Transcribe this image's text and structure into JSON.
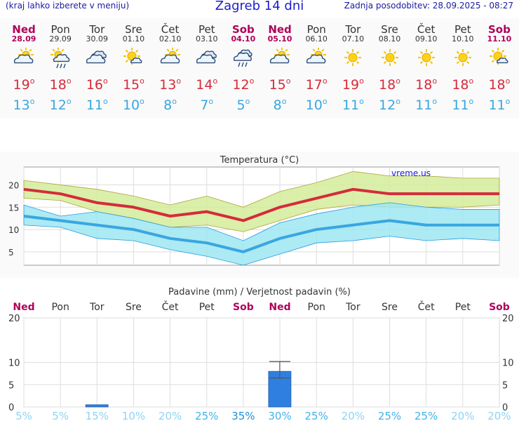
{
  "header": {
    "note": "(kraj lahko izberete v meniju)",
    "title": "Zagreb 14 dni",
    "updated": "Zadnja posodobitev: 28.09.2025 - 08:27"
  },
  "colors": {
    "weekend": "#b0005a",
    "tmax": "#d52b3a",
    "tmin": "#39a6e0",
    "rain": "#2f7fe0"
  },
  "days": [
    {
      "name": "Ned",
      "date": "28.09",
      "weekend": true,
      "icon": "partly-cloudy-icon",
      "tmax": "19",
      "tmin": "13"
    },
    {
      "name": "Pon",
      "date": "29.09",
      "weekend": false,
      "icon": "sun-rain-icon",
      "tmax": "18",
      "tmin": "12"
    },
    {
      "name": "Tor",
      "date": "30.09",
      "weekend": false,
      "icon": "cloudy-icon",
      "tmax": "16",
      "tmin": "11"
    },
    {
      "name": "Sre",
      "date": "01.10",
      "weekend": false,
      "icon": "mostly-sunny-icon",
      "tmax": "15",
      "tmin": "10"
    },
    {
      "name": "Čet",
      "date": "02.10",
      "weekend": false,
      "icon": "partly-cloudy-icon",
      "tmax": "13",
      "tmin": "8"
    },
    {
      "name": "Pet",
      "date": "03.10",
      "weekend": false,
      "icon": "cloudy-icon",
      "tmax": "14",
      "tmin": "7"
    },
    {
      "name": "Sob",
      "date": "04.10",
      "weekend": true,
      "icon": "cloud-rain-icon",
      "tmax": "12",
      "tmin": "5"
    },
    {
      "name": "Ned",
      "date": "05.10",
      "weekend": true,
      "icon": "partly-cloudy-icon",
      "tmax": "15",
      "tmin": "8"
    },
    {
      "name": "Pon",
      "date": "06.10",
      "weekend": false,
      "icon": "partly-cloudy-icon",
      "tmax": "17",
      "tmin": "10"
    },
    {
      "name": "Tor",
      "date": "07.10",
      "weekend": false,
      "icon": "sunny-icon",
      "tmax": "19",
      "tmin": "11"
    },
    {
      "name": "Sre",
      "date": "08.10",
      "weekend": false,
      "icon": "sunny-icon",
      "tmax": "18",
      "tmin": "12"
    },
    {
      "name": "Čet",
      "date": "09.10",
      "weekend": false,
      "icon": "sunny-icon",
      "tmax": "18",
      "tmin": "11"
    },
    {
      "name": "Pet",
      "date": "10.10",
      "weekend": false,
      "icon": "sunny-icon",
      "tmax": "18",
      "tmin": "11"
    },
    {
      "name": "Sob",
      "date": "11.10",
      "weekend": true,
      "icon": "mostly-sunny-icon",
      "tmax": "18",
      "tmin": "11"
    }
  ],
  "chart_data": [
    {
      "type": "line",
      "title": "Temperatura (°C)",
      "watermark": "vreme.us",
      "ylim": [
        2,
        24
      ],
      "yticks": [
        5,
        10,
        15,
        20
      ],
      "grid": true,
      "series": [
        {
          "values": [
            19,
            18,
            16,
            15,
            13,
            14,
            12,
            15,
            17,
            19,
            18,
            18,
            18,
            18
          ],
          "band": [
            17,
            16.5,
            14,
            12.5,
            10.5,
            11,
            9.5,
            12,
            14.5,
            15.5,
            15,
            15,
            15,
            15.5
          ],
          "band_top": [
            21,
            20,
            19,
            17.5,
            15.5,
            17.5,
            15,
            18.5,
            20.5,
            23,
            22,
            22,
            21.5,
            21.5
          ]
        },
        {
          "values": [
            13,
            12,
            11,
            10,
            8,
            7,
            5,
            8,
            10,
            11,
            12,
            11,
            11,
            11
          ],
          "band": [
            11,
            10.5,
            8,
            7.5,
            5.5,
            4,
            2,
            4.5,
            7,
            7.5,
            8.5,
            7.5,
            8,
            7.5
          ],
          "band_top": [
            15.5,
            13,
            14,
            12.5,
            10.5,
            10.5,
            7.5,
            11.5,
            13.5,
            15,
            16,
            15,
            14.5,
            14.5
          ]
        }
      ]
    },
    {
      "type": "bar",
      "title": "Padavine (mm) / Verjetnost padavin (%)",
      "ylim": [
        0,
        20
      ],
      "yticks": [
        0,
        5,
        10,
        20
      ],
      "values": [
        0,
        0.5,
        0,
        0,
        0,
        0,
        8,
        0,
        0,
        0,
        0,
        0,
        0,
        0
      ],
      "error_low": [
        0,
        0,
        0,
        0,
        0,
        0,
        6.5,
        0,
        0,
        0,
        0,
        0,
        0,
        0
      ],
      "error_high": [
        0,
        0,
        0,
        0,
        0,
        0,
        10.2,
        0,
        0,
        0,
        0,
        0,
        0,
        0
      ],
      "probability": [
        "5%",
        "5%",
        "15%",
        "10%",
        "20%",
        "25%",
        "35%",
        "30%",
        "25%",
        "20%",
        "25%",
        "25%",
        "20%",
        "20%"
      ],
      "probability_values": [
        5,
        5,
        15,
        10,
        20,
        25,
        35,
        30,
        25,
        20,
        25,
        25,
        20,
        20
      ]
    }
  ]
}
